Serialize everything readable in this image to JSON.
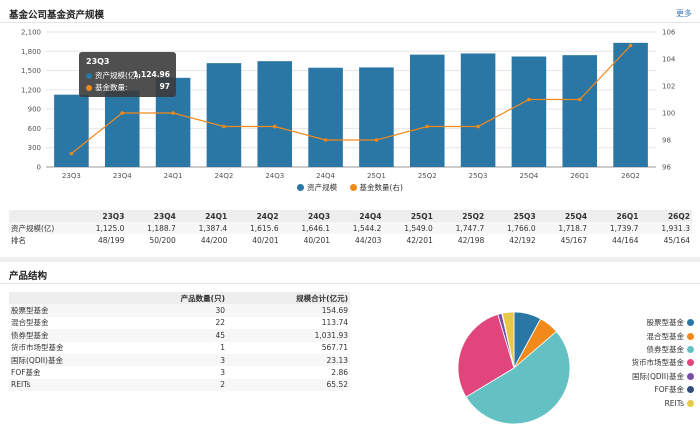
{
  "top": {
    "title": "基金公司基金资产规模",
    "more": "更多"
  },
  "bottom": {
    "title": "产品结构"
  },
  "chart_data": [
    {
      "type": "bar+line",
      "categories": [
        "23Q3",
        "23Q4",
        "24Q1",
        "24Q2",
        "24Q3",
        "24Q4",
        "25Q1",
        "25Q2",
        "25Q3",
        "25Q4",
        "26Q1",
        "26Q2"
      ],
      "series": [
        {
          "name": "资产规模",
          "type": "bar",
          "axis": "left",
          "color": "#2a76a4",
          "values": [
            1125.0,
            1188.7,
            1387.4,
            1615.6,
            1646.1,
            1544.2,
            1549.0,
            1747.7,
            1766.0,
            1718.7,
            1739.7,
            1931.3
          ]
        },
        {
          "name": "基金数量(右)",
          "type": "line",
          "axis": "right",
          "color": "#f28a1b",
          "values": [
            97,
            100,
            100,
            99,
            99,
            98,
            98,
            99,
            99,
            101,
            101,
            105
          ]
        }
      ],
      "yaxis_left": {
        "ticks": [
          "0",
          "300",
          "600",
          "900",
          "1,200",
          "1,500",
          "1,800",
          "2,100"
        ],
        "lim": [
          0,
          2100
        ]
      },
      "yaxis_right": {
        "ticks": [
          "96",
          "98",
          "100",
          "102",
          "104",
          "106"
        ],
        "lim": [
          96,
          106
        ]
      },
      "legend": "bottom",
      "tooltip": {
        "title": "23Q3",
        "rows": [
          {
            "label": "资产规模(亿):",
            "value": "1,124.96"
          },
          {
            "label": "基金数量:",
            "value": "97"
          }
        ]
      }
    },
    {
      "type": "pie",
      "labels": [
        "股票型基金",
        "混合型基金",
        "债券型基金",
        "货币市场型基金",
        "国际(QDII)基金",
        "FOF基金",
        "REITs"
      ],
      "values": [
        154.69,
        113.74,
        1031.93,
        567.71,
        23.13,
        2.86,
        65.52
      ],
      "colors": [
        "#2a76a4",
        "#f28a1b",
        "#63c1c4",
        "#e0457b",
        "#7b4ea6",
        "#2f4f7a",
        "#e6c84a"
      ],
      "legend": "right"
    }
  ],
  "quarter_table": {
    "header": [
      "",
      "23Q3",
      "23Q4",
      "24Q1",
      "24Q2",
      "24Q3",
      "24Q4",
      "25Q1",
      "25Q2",
      "25Q3",
      "25Q4",
      "26Q1",
      "26Q2"
    ],
    "rows": [
      [
        "资产规模(亿)",
        "1,125.0",
        "1,188.7",
        "1,387.4",
        "1,615.6",
        "1,646.1",
        "1,544.2",
        "1,549.0",
        "1,747.7",
        "1,766.0",
        "1,718.7",
        "1,739.7",
        "1,931.3"
      ],
      [
        "排名",
        "48/199",
        "50/200",
        "44/200",
        "40/201",
        "40/201",
        "44/203",
        "42/201",
        "42/198",
        "42/192",
        "45/167",
        "44/164",
        "45/164"
      ]
    ]
  },
  "struct_table": {
    "header": [
      "",
      "产品数量(只)",
      "规模合计(亿元)"
    ],
    "rows": [
      [
        "股票型基金",
        "30",
        "154.69"
      ],
      [
        "混合型基金",
        "22",
        "113.74"
      ],
      [
        "债券型基金",
        "45",
        "1,031.93"
      ],
      [
        "货币市场型基金",
        "1",
        "567.71"
      ],
      [
        "国际(QDII)基金",
        "3",
        "23.13"
      ],
      [
        "FOF基金",
        "3",
        "2.86"
      ],
      [
        "REITs",
        "2",
        "65.52"
      ]
    ]
  }
}
